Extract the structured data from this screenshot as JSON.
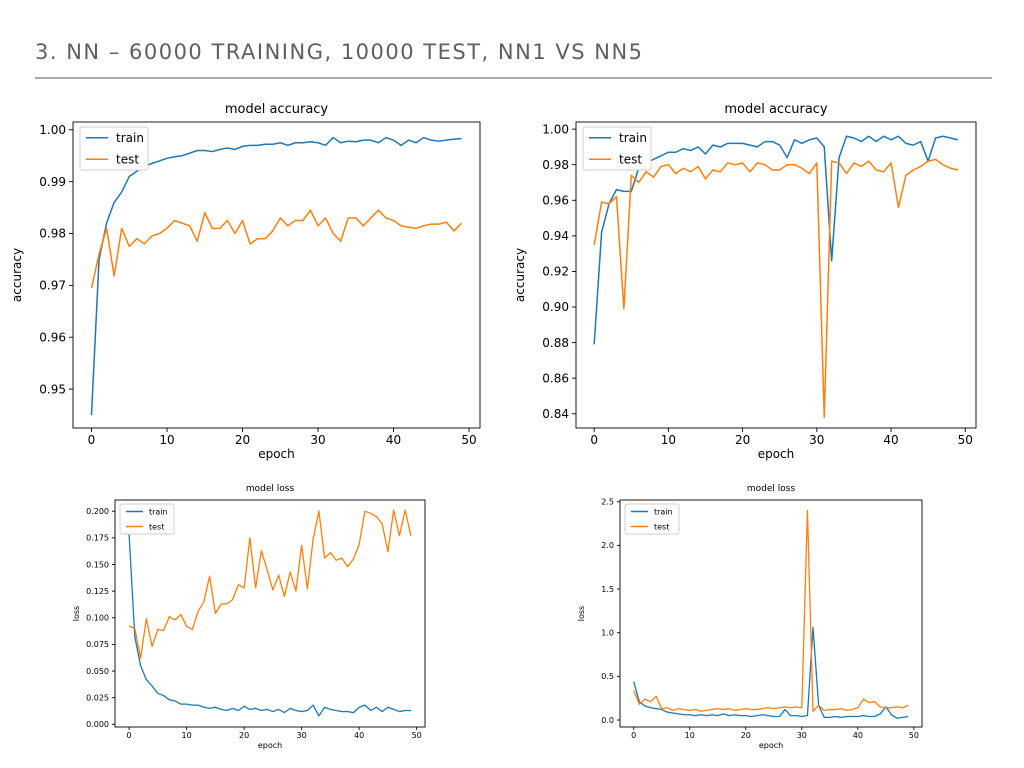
{
  "slide": {
    "title": "3. NN – 60000 TRAINING, 10000 TEST, NN1 VS NN5"
  },
  "colors": {
    "train": "#1f77b4",
    "test": "#ff7f0e",
    "title": "#5f5f5f",
    "rule": "#a8a8a8"
  },
  "chart_data": [
    {
      "id": "nn1-accuracy",
      "type": "line",
      "title": "model accuracy",
      "xlabel": "epoch",
      "ylabel": "accuracy",
      "xlim": [
        -2.45,
        51.45
      ],
      "ylim": [
        0.9425,
        1.0015
      ],
      "xticks": [
        0,
        10,
        20,
        30,
        40,
        50
      ],
      "yticks": [
        0.95,
        0.96,
        0.97,
        0.98,
        0.99,
        1.0
      ],
      "ytick_labels": [
        "0.95",
        "0.96",
        "0.97",
        "0.98",
        "0.99",
        "1.00"
      ],
      "grid": false,
      "legend": "upper-left",
      "x": [
        0,
        1,
        2,
        3,
        4,
        5,
        6,
        7,
        8,
        9,
        10,
        11,
        12,
        13,
        14,
        15,
        16,
        17,
        18,
        19,
        20,
        21,
        22,
        23,
        24,
        25,
        26,
        27,
        28,
        29,
        30,
        31,
        32,
        33,
        34,
        35,
        36,
        37,
        38,
        39,
        40,
        41,
        42,
        43,
        44,
        45,
        46,
        47,
        48,
        49
      ],
      "series": [
        {
          "name": "train",
          "values": [
            0.945,
            0.975,
            0.982,
            0.986,
            0.988,
            0.991,
            0.992,
            0.993,
            0.9935,
            0.994,
            0.9945,
            0.9948,
            0.995,
            0.9955,
            0.996,
            0.996,
            0.9958,
            0.9962,
            0.9965,
            0.9962,
            0.9968,
            0.997,
            0.997,
            0.9972,
            0.9972,
            0.9975,
            0.997,
            0.9975,
            0.9975,
            0.9977,
            0.9975,
            0.997,
            0.9985,
            0.9975,
            0.9978,
            0.9977,
            0.998,
            0.998,
            0.9975,
            0.9985,
            0.998,
            0.997,
            0.998,
            0.9975,
            0.9985,
            0.998,
            0.9978,
            0.998,
            0.9982,
            0.9983
          ]
        },
        {
          "name": "test",
          "values": [
            0.9695,
            0.976,
            0.981,
            0.9718,
            0.981,
            0.9775,
            0.979,
            0.978,
            0.9795,
            0.98,
            0.981,
            0.9825,
            0.982,
            0.9815,
            0.9785,
            0.984,
            0.981,
            0.981,
            0.9825,
            0.98,
            0.9825,
            0.978,
            0.979,
            0.979,
            0.9805,
            0.983,
            0.9815,
            0.9825,
            0.9825,
            0.9845,
            0.9815,
            0.983,
            0.98,
            0.9785,
            0.983,
            0.983,
            0.9815,
            0.983,
            0.9845,
            0.983,
            0.9825,
            0.9815,
            0.9812,
            0.981,
            0.9815,
            0.9818,
            0.9818,
            0.9822,
            0.9805,
            0.982
          ]
        }
      ]
    },
    {
      "id": "nn5-accuracy",
      "type": "line",
      "title": "model accuracy",
      "xlabel": "epoch",
      "ylabel": "accuracy",
      "xlim": [
        -2.45,
        51.45
      ],
      "ylim": [
        0.832,
        1.004
      ],
      "xticks": [
        0,
        10,
        20,
        30,
        40,
        50
      ],
      "yticks": [
        0.84,
        0.86,
        0.88,
        0.9,
        0.92,
        0.94,
        0.96,
        0.98,
        1.0
      ],
      "ytick_labels": [
        "0.84",
        "0.86",
        "0.88",
        "0.90",
        "0.92",
        "0.94",
        "0.96",
        "0.98",
        "1.00"
      ],
      "grid": false,
      "legend": "upper-left",
      "x": [
        0,
        1,
        2,
        3,
        4,
        5,
        6,
        7,
        8,
        9,
        10,
        11,
        12,
        13,
        14,
        15,
        16,
        17,
        18,
        19,
        20,
        21,
        22,
        23,
        24,
        25,
        26,
        27,
        28,
        29,
        30,
        31,
        32,
        33,
        34,
        35,
        36,
        37,
        38,
        39,
        40,
        41,
        42,
        43,
        44,
        45,
        46,
        47,
        48,
        49
      ],
      "series": [
        {
          "name": "train",
          "values": [
            0.879,
            0.942,
            0.958,
            0.966,
            0.965,
            0.965,
            0.978,
            0.981,
            0.983,
            0.985,
            0.987,
            0.987,
            0.989,
            0.988,
            0.99,
            0.986,
            0.991,
            0.99,
            0.992,
            0.992,
            0.992,
            0.991,
            0.99,
            0.993,
            0.993,
            0.991,
            0.984,
            0.994,
            0.992,
            0.994,
            0.995,
            0.99,
            0.926,
            0.984,
            0.996,
            0.995,
            0.993,
            0.996,
            0.993,
            0.996,
            0.994,
            0.996,
            0.992,
            0.991,
            0.993,
            0.982,
            0.995,
            0.996,
            0.995,
            0.994
          ]
        },
        {
          "name": "test",
          "values": [
            0.935,
            0.959,
            0.958,
            0.962,
            0.899,
            0.974,
            0.97,
            0.976,
            0.973,
            0.979,
            0.98,
            0.975,
            0.978,
            0.976,
            0.979,
            0.972,
            0.977,
            0.976,
            0.981,
            0.98,
            0.981,
            0.976,
            0.981,
            0.98,
            0.977,
            0.977,
            0.98,
            0.98,
            0.978,
            0.975,
            0.981,
            0.838,
            0.982,
            0.981,
            0.975,
            0.981,
            0.979,
            0.982,
            0.977,
            0.976,
            0.981,
            0.956,
            0.974,
            0.977,
            0.979,
            0.982,
            0.983,
            0.98,
            0.978,
            0.977
          ]
        }
      ]
    },
    {
      "id": "nn1-loss",
      "type": "line",
      "title": "model loss",
      "xlabel": "epoch",
      "ylabel": "loss",
      "xlim": [
        -2.45,
        51.45
      ],
      "ylim": [
        -0.0025,
        0.2105
      ],
      "xticks": [
        0,
        10,
        20,
        30,
        40,
        50
      ],
      "yticks": [
        0.0,
        0.025,
        0.05,
        0.075,
        0.1,
        0.125,
        0.15,
        0.175,
        0.2
      ],
      "ytick_labels": [
        "0.000",
        "0.025",
        "0.050",
        "0.075",
        "0.100",
        "0.125",
        "0.150",
        "0.175",
        "0.200"
      ],
      "grid": false,
      "legend": "upper-left",
      "x": [
        0,
        1,
        2,
        3,
        4,
        5,
        6,
        7,
        8,
        9,
        10,
        11,
        12,
        13,
        14,
        15,
        16,
        17,
        18,
        19,
        20,
        21,
        22,
        23,
        24,
        25,
        26,
        27,
        28,
        29,
        30,
        31,
        32,
        33,
        34,
        35,
        36,
        37,
        38,
        39,
        40,
        41,
        42,
        43,
        44,
        45,
        46,
        47,
        48,
        49
      ],
      "series": [
        {
          "name": "train",
          "values": [
            0.178,
            0.082,
            0.055,
            0.042,
            0.036,
            0.029,
            0.027,
            0.023,
            0.022,
            0.019,
            0.019,
            0.018,
            0.018,
            0.016,
            0.015,
            0.016,
            0.014,
            0.013,
            0.015,
            0.013,
            0.017,
            0.014,
            0.015,
            0.013,
            0.014,
            0.012,
            0.014,
            0.011,
            0.015,
            0.013,
            0.012,
            0.013,
            0.018,
            0.008,
            0.016,
            0.014,
            0.013,
            0.012,
            0.012,
            0.011,
            0.016,
            0.018,
            0.013,
            0.016,
            0.012,
            0.016,
            0.014,
            0.012,
            0.013,
            0.013
          ]
        },
        {
          "name": "test",
          "values": [
            0.092,
            0.09,
            0.062,
            0.099,
            0.073,
            0.089,
            0.088,
            0.101,
            0.098,
            0.103,
            0.092,
            0.089,
            0.106,
            0.115,
            0.139,
            0.104,
            0.113,
            0.113,
            0.117,
            0.131,
            0.128,
            0.175,
            0.128,
            0.163,
            0.145,
            0.126,
            0.14,
            0.12,
            0.143,
            0.125,
            0.168,
            0.127,
            0.174,
            0.2,
            0.156,
            0.161,
            0.154,
            0.156,
            0.148,
            0.155,
            0.169,
            0.2,
            0.198,
            0.195,
            0.188,
            0.162,
            0.201,
            0.177,
            0.201,
            0.177
          ]
        }
      ]
    },
    {
      "id": "nn5-loss",
      "type": "line",
      "title": "model loss",
      "xlabel": "epoch",
      "ylabel": "loss",
      "xlim": [
        -2.45,
        51.45
      ],
      "ylim": [
        -0.08,
        2.52
      ],
      "xticks": [
        0,
        10,
        20,
        30,
        40,
        50
      ],
      "yticks": [
        0.0,
        0.5,
        1.0,
        1.5,
        2.0,
        2.5
      ],
      "ytick_labels": [
        "0.0",
        "0.5",
        "1.0",
        "1.5",
        "2.0",
        "2.5"
      ],
      "grid": false,
      "legend": "upper-left",
      "x": [
        0,
        1,
        2,
        3,
        4,
        5,
        6,
        7,
        8,
        9,
        10,
        11,
        12,
        13,
        14,
        15,
        16,
        17,
        18,
        19,
        20,
        21,
        22,
        23,
        24,
        25,
        26,
        27,
        28,
        29,
        30,
        31,
        32,
        33,
        34,
        35,
        36,
        37,
        38,
        39,
        40,
        41,
        42,
        43,
        44,
        45,
        46,
        47,
        48,
        49
      ],
      "series": [
        {
          "name": "train",
          "values": [
            0.44,
            0.21,
            0.16,
            0.14,
            0.13,
            0.12,
            0.09,
            0.08,
            0.07,
            0.06,
            0.06,
            0.05,
            0.06,
            0.05,
            0.06,
            0.05,
            0.07,
            0.05,
            0.06,
            0.05,
            0.05,
            0.04,
            0.05,
            0.06,
            0.05,
            0.04,
            0.04,
            0.12,
            0.05,
            0.05,
            0.04,
            0.05,
            1.06,
            0.17,
            0.03,
            0.03,
            0.04,
            0.03,
            0.04,
            0.04,
            0.04,
            0.05,
            0.04,
            0.04,
            0.07,
            0.15,
            0.06,
            0.02,
            0.03,
            0.04
          ]
        },
        {
          "name": "test",
          "values": [
            0.34,
            0.18,
            0.24,
            0.21,
            0.27,
            0.13,
            0.14,
            0.11,
            0.13,
            0.12,
            0.11,
            0.12,
            0.1,
            0.11,
            0.12,
            0.13,
            0.12,
            0.13,
            0.11,
            0.12,
            0.13,
            0.12,
            0.12,
            0.13,
            0.14,
            0.13,
            0.14,
            0.15,
            0.14,
            0.15,
            0.14,
            2.4,
            0.1,
            0.17,
            0.11,
            0.12,
            0.12,
            0.13,
            0.11,
            0.12,
            0.14,
            0.24,
            0.2,
            0.21,
            0.15,
            0.14,
            0.14,
            0.15,
            0.14,
            0.17
          ]
        }
      ]
    }
  ]
}
